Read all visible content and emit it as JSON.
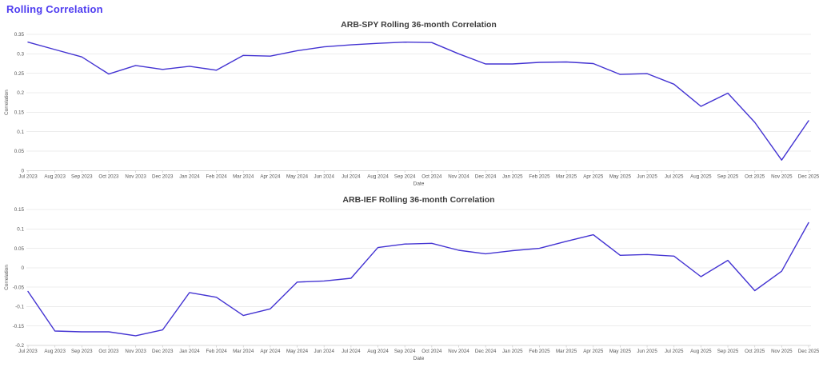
{
  "page": {
    "title": "Rolling Correlation",
    "accent_color": "#4e3cf0"
  },
  "chart_data": [
    {
      "type": "line",
      "id": "arb-spy",
      "title": "ARB-SPY Rolling 36-month Correlation",
      "xlabel": "Date",
      "ylabel": "Correlation",
      "legend": "none",
      "grid": true,
      "line_color": "#4333d2",
      "ylim": [
        0,
        0.35
      ],
      "y_ticks": [
        "0.35",
        "0.3",
        "0.25",
        "0.2",
        "0.15",
        "0.1",
        "0.05",
        "0"
      ],
      "x": [
        "Jul 2023",
        "Aug 2023",
        "Sep 2023",
        "Oct 2023",
        "Nov 2023",
        "Dec 2023",
        "Jan 2024",
        "Feb 2024",
        "Mar 2024",
        "Apr 2024",
        "May 2024",
        "Jun 2024",
        "Jul 2024",
        "Aug 2024",
        "Sep 2024",
        "Oct 2024",
        "Nov 2024",
        "Dec 2024",
        "Jan 2025",
        "Feb 2025",
        "Mar 2025",
        "Apr 2025",
        "May 2025",
        "Jun 2025",
        "Jul 2025",
        "Aug 2025",
        "Sep 2025",
        "Oct 2025",
        "Nov 2025",
        "Dec 2025"
      ],
      "values": [
        0.33,
        0.311,
        0.292,
        0.248,
        0.27,
        0.26,
        0.268,
        0.258,
        0.296,
        0.294,
        0.308,
        0.318,
        0.323,
        0.327,
        0.33,
        0.329,
        0.3,
        0.274,
        0.274,
        0.278,
        0.279,
        0.275,
        0.247,
        0.249,
        0.222,
        0.165,
        0.199,
        0.124,
        0.027,
        0.128
      ]
    },
    {
      "type": "line",
      "id": "arb-ief",
      "title": "ARB-IEF Rolling 36-month Correlation",
      "xlabel": "Date",
      "ylabel": "Correlation",
      "legend": "none",
      "grid": true,
      "line_color": "#4333d2",
      "ylim": [
        -0.2,
        0.15
      ],
      "y_ticks": [
        "0.15",
        "0.1",
        "0.05",
        "0",
        "-0.05",
        "-0.1",
        "-0.15",
        "-0.2"
      ],
      "x": [
        "Jul 2023",
        "Aug 2023",
        "Sep 2023",
        "Oct 2023",
        "Nov 2023",
        "Dec 2023",
        "Jan 2024",
        "Feb 2024",
        "Mar 2024",
        "Apr 2024",
        "May 2024",
        "Jun 2024",
        "Jul 2024",
        "Aug 2024",
        "Sep 2024",
        "Oct 2024",
        "Nov 2024",
        "Dec 2024",
        "Jan 2025",
        "Feb 2025",
        "Mar 2025",
        "Apr 2025",
        "May 2025",
        "Jun 2025",
        "Jul 2025",
        "Aug 2025",
        "Sep 2025",
        "Oct 2025",
        "Nov 2025",
        "Dec 2025"
      ],
      "values": [
        -0.061,
        -0.163,
        -0.165,
        -0.165,
        -0.175,
        -0.16,
        -0.064,
        -0.076,
        -0.123,
        -0.106,
        -0.037,
        -0.034,
        -0.027,
        0.052,
        0.061,
        0.063,
        0.045,
        0.036,
        0.044,
        0.05,
        0.068,
        0.085,
        0.032,
        0.034,
        0.03,
        -0.023,
        0.019,
        -0.059,
        -0.009,
        0.116
      ]
    }
  ]
}
